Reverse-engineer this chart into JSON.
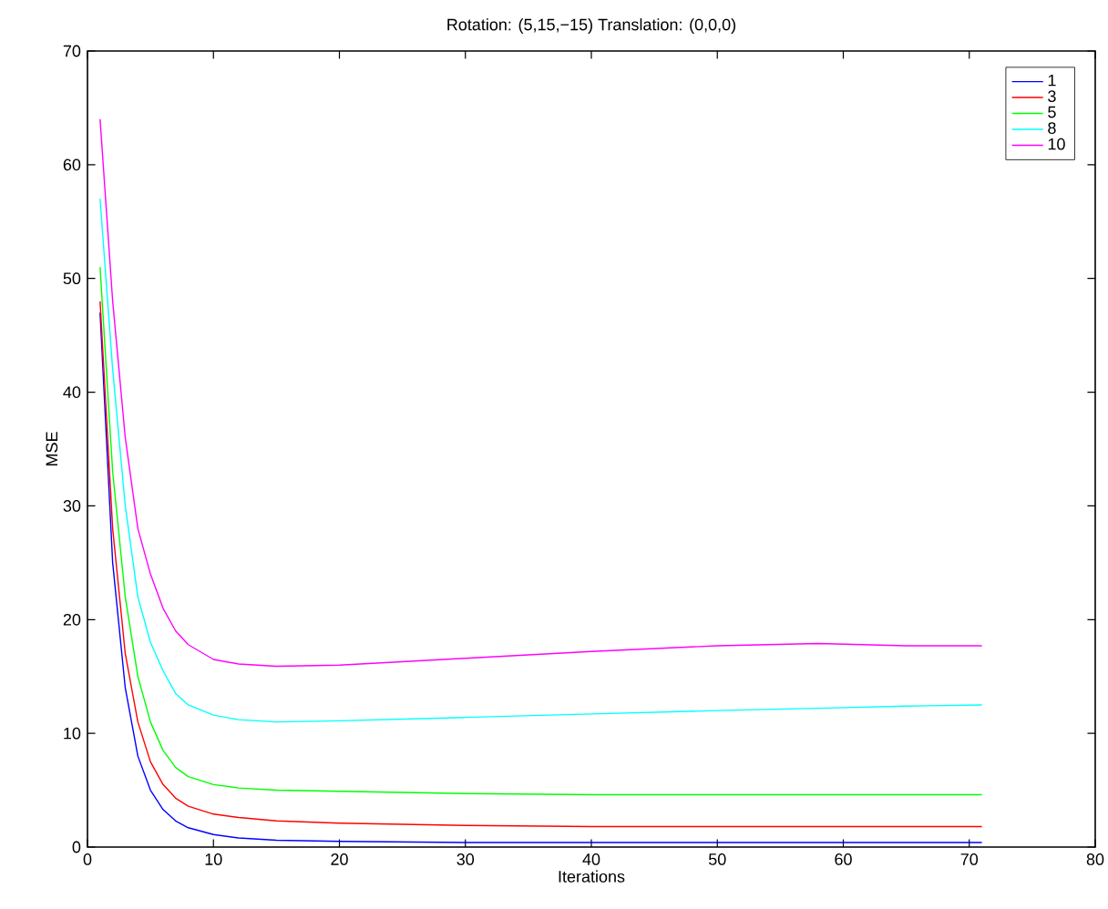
{
  "chart_data": {
    "type": "line",
    "title": "Rotation: (5,15,−15) Translation: (0,0,0)",
    "xlabel": "Iterations",
    "ylabel": "MSE",
    "x": [
      1,
      2,
      3,
      4,
      5,
      6,
      7,
      8,
      10,
      12,
      15,
      20,
      30,
      40,
      50,
      58,
      65,
      71
    ],
    "series": [
      {
        "name": "1",
        "color": "#0000ff",
        "values": [
          47,
          25,
          14,
          8,
          5,
          3.3,
          2.3,
          1.7,
          1.1,
          0.8,
          0.6,
          0.5,
          0.4,
          0.4,
          0.4,
          0.4,
          0.4,
          0.4
        ]
      },
      {
        "name": "3",
        "color": "#ff0000",
        "values": [
          48,
          28,
          17,
          11,
          7.5,
          5.5,
          4.3,
          3.6,
          2.9,
          2.6,
          2.3,
          2.1,
          1.9,
          1.8,
          1.8,
          1.8,
          1.8,
          1.8
        ]
      },
      {
        "name": "5",
        "color": "#00ff00",
        "values": [
          51,
          33,
          22,
          15,
          11,
          8.5,
          7,
          6.2,
          5.5,
          5.2,
          5.0,
          4.9,
          4.7,
          4.6,
          4.6,
          4.6,
          4.6,
          4.6
        ]
      },
      {
        "name": "8",
        "color": "#00ffff",
        "values": [
          57,
          42,
          30,
          22,
          18,
          15.5,
          13.5,
          12.5,
          11.6,
          11.2,
          11.0,
          11.1,
          11.4,
          11.7,
          12.0,
          12.2,
          12.4,
          12.5
        ]
      },
      {
        "name": "10",
        "color": "#ff00ff",
        "values": [
          64,
          48,
          36,
          28,
          24,
          21,
          19,
          17.8,
          16.5,
          16.1,
          15.9,
          16.0,
          16.6,
          17.2,
          17.7,
          17.9,
          17.7,
          17.7
        ]
      }
    ],
    "xlim": [
      0,
      80
    ],
    "ylim": [
      0,
      70
    ],
    "xticks": [
      0,
      10,
      20,
      30,
      40,
      50,
      60,
      70,
      80
    ],
    "yticks": [
      0,
      10,
      20,
      30,
      40,
      50,
      60,
      70
    ],
    "grid": false,
    "legend": "top right"
  }
}
